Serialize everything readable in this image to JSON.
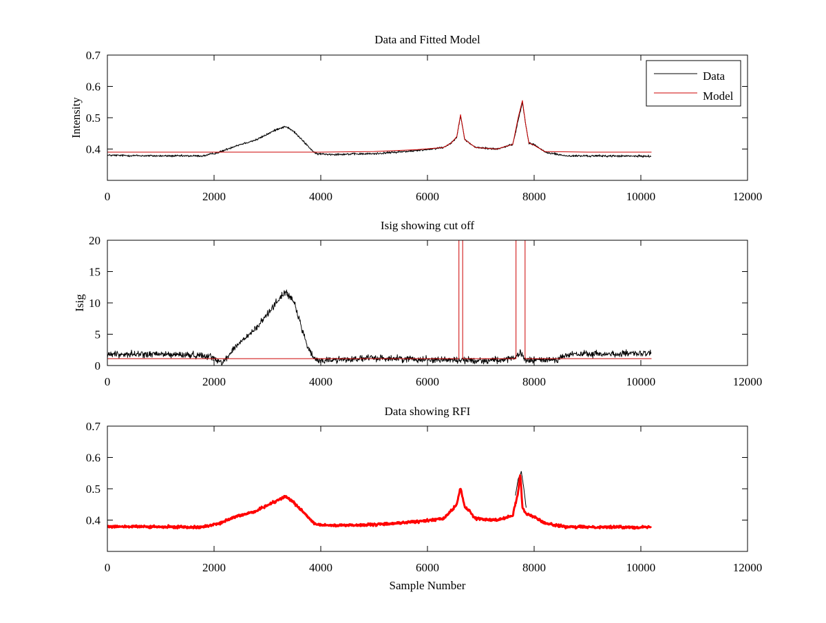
{
  "figure": {
    "background": "#ffffff"
  },
  "chart_data": [
    {
      "type": "line",
      "title": "Data and Fitted Model",
      "xlabel": "",
      "ylabel": "Intensity",
      "xlim": [
        0,
        12000
      ],
      "ylim": [
        0.3,
        0.7
      ],
      "xticks": [
        "0",
        "2000",
        "4000",
        "6000",
        "8000",
        "10000",
        "12000"
      ],
      "yticks": [
        "0.4",
        "0.5",
        "0.6",
        "0.7"
      ],
      "ytick_values": [
        0.4,
        0.5,
        0.6,
        0.7
      ],
      "legend": {
        "placement": "top-right",
        "entries": [
          {
            "label": "Data",
            "color": "#000000"
          },
          {
            "label": "Model",
            "color": "#cc0000"
          }
        ]
      },
      "series": [
        {
          "name": "Data",
          "color": "#000000",
          "noise": 0.005,
          "x": [
            0,
            1000,
            1800,
            2100,
            2400,
            2800,
            3200,
            3350,
            3500,
            3900,
            4200,
            5000,
            5800,
            6300,
            6450,
            6550,
            6620,
            6700,
            6780,
            6900,
            7300,
            7600,
            7700,
            7780,
            7840,
            7900,
            8000,
            8200,
            8600,
            9200,
            10200
          ],
          "y": [
            0.38,
            0.378,
            0.378,
            0.39,
            0.41,
            0.43,
            0.465,
            0.472,
            0.455,
            0.385,
            0.383,
            0.385,
            0.395,
            0.405,
            0.42,
            0.44,
            0.505,
            0.43,
            0.42,
            0.405,
            0.4,
            0.415,
            0.49,
            0.55,
            0.48,
            0.42,
            0.415,
            0.39,
            0.378,
            0.378,
            0.377
          ]
        },
        {
          "name": "Model",
          "color": "#cc0000",
          "noise": 0,
          "x": [
            0,
            2000,
            4000,
            5000,
            5800,
            6300,
            6450,
            6550,
            6620,
            6700,
            6780,
            6900,
            7300,
            7600,
            7700,
            7780,
            7840,
            7900,
            8000,
            8200,
            9000,
            10200
          ],
          "y": [
            0.39,
            0.39,
            0.39,
            0.392,
            0.398,
            0.405,
            0.42,
            0.44,
            0.51,
            0.43,
            0.42,
            0.405,
            0.4,
            0.415,
            0.5,
            0.555,
            0.48,
            0.42,
            0.412,
            0.392,
            0.39,
            0.39
          ]
        }
      ]
    },
    {
      "type": "line",
      "title": "Isig showing cut off",
      "xlabel": "",
      "ylabel": "Isig",
      "xlim": [
        0,
        12000
      ],
      "ylim": [
        0,
        20
      ],
      "xticks": [
        "0",
        "2000",
        "4000",
        "6000",
        "8000",
        "10000",
        "12000"
      ],
      "yticks": [
        "0",
        "5",
        "10",
        "15",
        "20"
      ],
      "ytick_values": [
        0,
        5,
        10,
        15,
        20
      ],
      "series": [
        {
          "name": "Isig",
          "color": "#000000",
          "noise": 0.8,
          "x": [
            0,
            1000,
            1900,
            2100,
            2200,
            2400,
            2800,
            3200,
            3350,
            3500,
            3750,
            3900,
            5000,
            6000,
            7000,
            7600,
            7750,
            7850,
            8400,
            8700,
            10200
          ],
          "y": [
            1.8,
            1.8,
            1.6,
            0.6,
            0.8,
            3.0,
            6.0,
            10.5,
            11.8,
            10.0,
            3.0,
            0.8,
            1.2,
            1.0,
            0.8,
            1.0,
            2.0,
            0.8,
            1.0,
            1.8,
            1.9
          ]
        },
        {
          "name": "Cut off",
          "color": "#cc0000",
          "noise": 0,
          "x": [
            0,
            6590,
            6590,
            6660,
            6660,
            7660,
            7660,
            7830,
            7830,
            10200
          ],
          "y": [
            1.1,
            1.1,
            20,
            20,
            1.1,
            1.1,
            20,
            20,
            1.1,
            1.1
          ]
        }
      ]
    },
    {
      "type": "line",
      "title": "Data showing RFI",
      "xlabel": "Sample Number",
      "ylabel": "",
      "xlim": [
        0,
        12000
      ],
      "ylim": [
        0.3,
        0.7
      ],
      "xticks": [
        "0",
        "2000",
        "4000",
        "6000",
        "8000",
        "10000",
        "12000"
      ],
      "yticks": [
        "0.4",
        "0.5",
        "0.6",
        "0.7"
      ],
      "ytick_values": [
        0.4,
        0.5,
        0.6,
        0.7
      ],
      "series": [
        {
          "name": "Data",
          "color": "#000000",
          "noise": 0.003,
          "x": [
            7650,
            7700,
            7760,
            7800,
            7850
          ],
          "y": [
            0.48,
            0.53,
            0.555,
            0.51,
            0.44
          ]
        },
        {
          "name": "RFI",
          "color": "#ff0000",
          "noise": 0.006,
          "x": [
            0,
            1000,
            1800,
            2100,
            2400,
            2800,
            3200,
            3350,
            3500,
            3900,
            4200,
            5000,
            5800,
            6300,
            6450,
            6550,
            6620,
            6700,
            6780,
            6900,
            7300,
            7600,
            7700,
            7740,
            7780,
            7850,
            7900,
            8000,
            8200,
            8600,
            9200,
            10200
          ],
          "y": [
            0.38,
            0.378,
            0.378,
            0.39,
            0.41,
            0.43,
            0.465,
            0.475,
            0.455,
            0.385,
            0.383,
            0.385,
            0.395,
            0.405,
            0.43,
            0.45,
            0.505,
            0.44,
            0.43,
            0.405,
            0.4,
            0.415,
            0.49,
            0.55,
            0.44,
            0.42,
            0.418,
            0.41,
            0.39,
            0.378,
            0.378,
            0.377
          ]
        }
      ]
    }
  ]
}
